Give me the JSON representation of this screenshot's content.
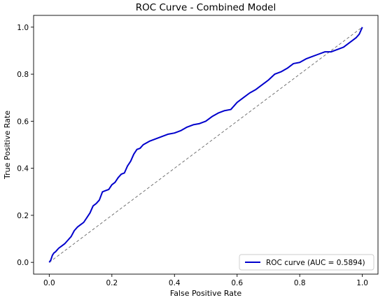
{
  "chart_data": {
    "type": "line",
    "title": "ROC Curve - Combined Model",
    "xlabel": "False Positive Rate",
    "ylabel": "True Positive Rate",
    "xlim": [
      -0.05,
      1.05
    ],
    "ylim": [
      -0.05,
      1.05
    ],
    "x_ticks": [
      {
        "value": 0.0,
        "label": "0.0"
      },
      {
        "value": 0.2,
        "label": "0.2"
      },
      {
        "value": 0.4,
        "label": "0.4"
      },
      {
        "value": 0.6,
        "label": "0.6"
      },
      {
        "value": 0.8,
        "label": "0.8"
      },
      {
        "value": 1.0,
        "label": "1.0"
      }
    ],
    "y_ticks": [
      {
        "value": 0.0,
        "label": "0.0"
      },
      {
        "value": 0.2,
        "label": "0.2"
      },
      {
        "value": 0.4,
        "label": "0.4"
      },
      {
        "value": 0.6,
        "label": "0.6"
      },
      {
        "value": 0.8,
        "label": "0.8"
      },
      {
        "value": 1.0,
        "label": "1.0"
      }
    ],
    "grid": false,
    "legend_position": "lower-right",
    "series": [
      {
        "name": "ROC curve (AUC = 0.5894)",
        "color": "#0000cc",
        "style": "solid",
        "x": [
          0.0,
          0.005,
          0.01,
          0.015,
          0.02,
          0.03,
          0.04,
          0.05,
          0.06,
          0.07,
          0.08,
          0.09,
          0.1,
          0.11,
          0.12,
          0.13,
          0.14,
          0.15,
          0.16,
          0.17,
          0.18,
          0.19,
          0.2,
          0.21,
          0.22,
          0.23,
          0.24,
          0.25,
          0.26,
          0.27,
          0.28,
          0.29,
          0.3,
          0.32,
          0.34,
          0.36,
          0.38,
          0.4,
          0.42,
          0.44,
          0.46,
          0.48,
          0.5,
          0.52,
          0.54,
          0.56,
          0.58,
          0.6,
          0.62,
          0.64,
          0.66,
          0.68,
          0.7,
          0.72,
          0.74,
          0.76,
          0.78,
          0.8,
          0.82,
          0.84,
          0.86,
          0.88,
          0.9,
          0.92,
          0.94,
          0.96,
          0.98,
          0.99,
          1.0
        ],
        "y": [
          0.0,
          0.01,
          0.03,
          0.04,
          0.045,
          0.06,
          0.07,
          0.08,
          0.095,
          0.11,
          0.135,
          0.15,
          0.16,
          0.17,
          0.19,
          0.21,
          0.24,
          0.25,
          0.265,
          0.3,
          0.305,
          0.31,
          0.33,
          0.34,
          0.36,
          0.375,
          0.38,
          0.41,
          0.43,
          0.46,
          0.48,
          0.485,
          0.5,
          0.515,
          0.525,
          0.535,
          0.545,
          0.55,
          0.56,
          0.575,
          0.585,
          0.59,
          0.6,
          0.62,
          0.635,
          0.645,
          0.65,
          0.68,
          0.7,
          0.72,
          0.735,
          0.755,
          0.775,
          0.8,
          0.81,
          0.825,
          0.845,
          0.85,
          0.865,
          0.875,
          0.885,
          0.895,
          0.895,
          0.905,
          0.915,
          0.935,
          0.955,
          0.97,
          1.0
        ]
      },
      {
        "name": "",
        "color": "#666666",
        "style": "dashed",
        "x": [
          0.0,
          1.0
        ],
        "y": [
          0.0,
          1.0
        ]
      }
    ]
  }
}
